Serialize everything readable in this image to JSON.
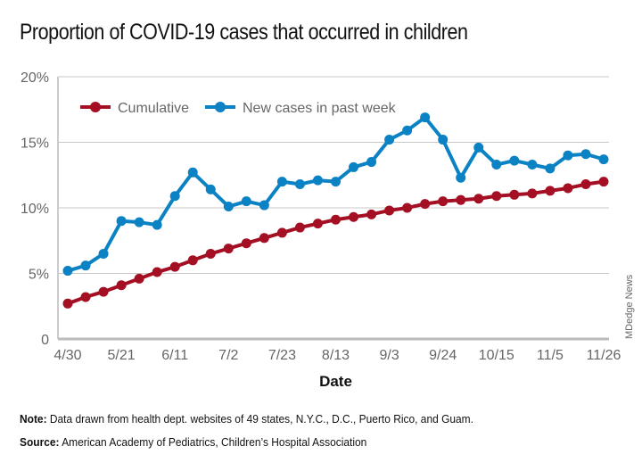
{
  "chart_data": {
    "type": "line",
    "title": "Proportion of COVID-19 cases that occurred in children",
    "xlabel": "Date",
    "ylabel": "",
    "ylim": [
      0,
      20
    ],
    "yticks": [
      "0",
      "5%",
      "10%",
      "15%",
      "20%"
    ],
    "ytick_values": [
      0,
      5,
      10,
      15,
      20
    ],
    "x": [
      "4/30",
      "5/7",
      "5/14",
      "5/21",
      "5/28",
      "6/4",
      "6/11",
      "6/18",
      "6/25",
      "7/2",
      "7/9",
      "7/16",
      "7/23",
      "7/30",
      "8/6",
      "8/13",
      "8/20",
      "8/27",
      "9/3",
      "9/10",
      "9/17",
      "9/24",
      "10/1",
      "10/8",
      "10/15",
      "10/22",
      "10/29",
      "11/5",
      "11/12",
      "11/19",
      "11/26"
    ],
    "xticks": [
      "4/30",
      "5/21",
      "6/11",
      "7/2",
      "7/23",
      "8/13",
      "9/3",
      "9/24",
      "10/15",
      "11/5",
      "11/26"
    ],
    "grid": true,
    "legend_position": "top-left",
    "series": [
      {
        "name": "Cumulative",
        "color": "#a50f24",
        "values": [
          2.7,
          3.2,
          3.6,
          4.1,
          4.6,
          5.1,
          5.5,
          6.0,
          6.5,
          6.9,
          7.3,
          7.7,
          8.1,
          8.5,
          8.8,
          9.1,
          9.3,
          9.5,
          9.8,
          10.0,
          10.3,
          10.5,
          10.6,
          10.7,
          10.9,
          11.0,
          11.1,
          11.3,
          11.5,
          11.8,
          12.0
        ]
      },
      {
        "name": "New cases in past week",
        "color": "#0a82c4",
        "values": [
          5.2,
          5.6,
          6.5,
          9.0,
          8.9,
          8.7,
          10.9,
          12.7,
          11.4,
          10.1,
          10.5,
          10.2,
          12.0,
          11.8,
          12.1,
          12.0,
          13.1,
          13.5,
          15.2,
          15.9,
          16.9,
          15.2,
          12.3,
          14.6,
          13.3,
          13.6,
          13.3,
          13.0,
          14.0,
          14.1,
          13.7
        ]
      }
    ]
  },
  "notes": {
    "note_label": "Note:",
    "note_text": " Data drawn from health dept. websites of 49 states, N.Y.C., D.C., Puerto Rico, and Guam.",
    "source_label": "Source:",
    "source_text": " American Academy of Pediatrics, Children’s Hospital Association"
  },
  "credit": "MDedge News"
}
